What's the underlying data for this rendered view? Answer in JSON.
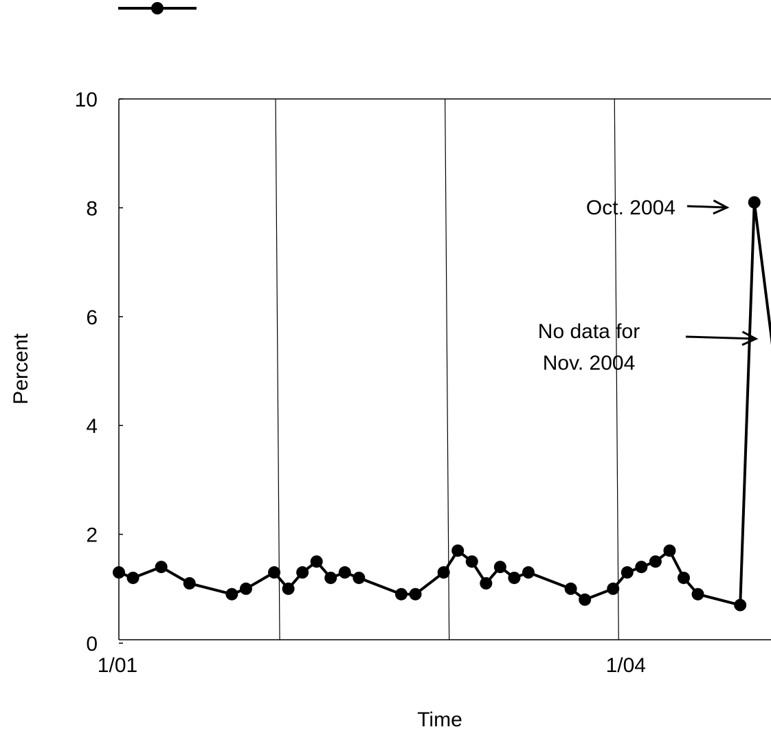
{
  "chart_data": {
    "type": "line",
    "title": "",
    "xlabel": "Time",
    "ylabel": "Percent",
    "ylim": [
      0,
      10
    ],
    "y_ticks": [
      0,
      2,
      4,
      6,
      8,
      10
    ],
    "x_tick_labels": [
      {
        "x": "2001-01",
        "label": "1/01"
      },
      {
        "x": "2004-01",
        "label": "1/04"
      }
    ],
    "x_range": [
      "2001-01",
      "2004-11"
    ],
    "vertical_gridlines_at": [
      "2001-12",
      "2002-12",
      "2003-12"
    ],
    "legend": {
      "placement": "top-left",
      "entries": [
        {
          "marker": "filled-circle-line",
          "label": ""
        }
      ]
    },
    "series": [
      {
        "color": "#000000",
        "marker": "filled-circle",
        "x": [
          "2001-01",
          "2001-02",
          "2001-04",
          "2001-06",
          "2001-09",
          "2001-10",
          "2001-12",
          "2002-01",
          "2002-02",
          "2002-03",
          "2002-04",
          "2002-05",
          "2002-06",
          "2002-09",
          "2002-10",
          "2002-12",
          "2003-01",
          "2003-02",
          "2003-03",
          "2003-04",
          "2003-05",
          "2003-06",
          "2003-09",
          "2003-10",
          "2003-12",
          "2004-01",
          "2004-02",
          "2004-03",
          "2004-04",
          "2004-05",
          "2004-06",
          "2004-09",
          "2004-10"
        ],
        "y": [
          1.3,
          1.2,
          1.4,
          1.1,
          0.9,
          1.0,
          1.3,
          1.0,
          1.3,
          1.5,
          1.2,
          1.3,
          1.2,
          0.9,
          0.9,
          1.3,
          1.7,
          1.5,
          1.1,
          1.4,
          1.2,
          1.3,
          1.0,
          0.8,
          1.0,
          1.3,
          1.4,
          1.5,
          1.7,
          1.2,
          0.9,
          0.7,
          8.1
        ],
        "trailing_segment_to": {
          "x": "2004-12",
          "y": 2.8,
          "note": "continues off the plotted area"
        }
      }
    ],
    "annotations": [
      {
        "text": "Oct. 2004",
        "points_to": {
          "x": "2004-10",
          "y": 8.1
        }
      },
      {
        "lines": [
          "No data for",
          "Nov. 2004"
        ],
        "points_to": {
          "x": "2004-11"
        }
      }
    ]
  }
}
